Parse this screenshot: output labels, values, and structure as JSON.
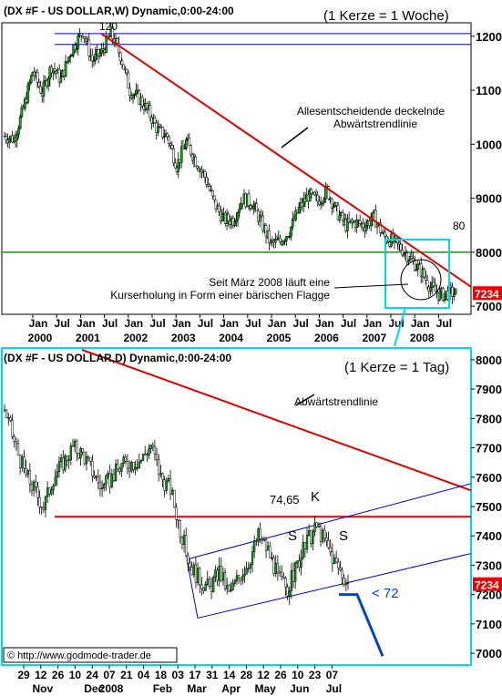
{
  "colors": {
    "candle_up": "#12a812",
    "candle_down": "#ffffff",
    "candle_outline": "#000000",
    "trendline": "#dd0000",
    "support": "#228b22",
    "channel": "#0000cc",
    "highlight_box": "#00d8e8",
    "price_tag": "#ee0000",
    "projection": "#0044cc"
  },
  "chart_data": [
    {
      "type": "candlestick",
      "title": "(DX #F - US DOLLAR,W) Dynamic,0:00-24:00",
      "subtitle": "(1 Kerze = 1 Woche)",
      "xlabel": "",
      "ylabel": "",
      "ylim": [
        6850,
        12250
      ],
      "x_tick_labels": [
        {
          "top": "Jan",
          "bottom": "2000"
        },
        {
          "top": "Jul",
          "bottom": ""
        },
        {
          "top": "Jan",
          "bottom": "2001"
        },
        {
          "top": "Jul",
          "bottom": ""
        },
        {
          "top": "Jan",
          "bottom": "2002"
        },
        {
          "top": "Jul",
          "bottom": ""
        },
        {
          "top": "Jan",
          "bottom": "2003"
        },
        {
          "top": "Jul",
          "bottom": ""
        },
        {
          "top": "Jan",
          "bottom": "2004"
        },
        {
          "top": "Jul",
          "bottom": ""
        },
        {
          "top": "Jan",
          "bottom": "2005"
        },
        {
          "top": "Jul",
          "bottom": ""
        },
        {
          "top": "Jan",
          "bottom": "2006"
        },
        {
          "top": "Jul",
          "bottom": ""
        },
        {
          "top": "Jan",
          "bottom": "2007"
        },
        {
          "top": "Jul",
          "bottom": ""
        },
        {
          "top": "Jan",
          "bottom": "2008"
        },
        {
          "top": "Jul",
          "bottom": ""
        }
      ],
      "y_tick_labels": [
        "12000",
        "11000",
        "10000",
        "9000",
        "8000",
        "7000"
      ],
      "y_ticks": [
        12000,
        11000,
        10000,
        9000,
        8000,
        7000
      ],
      "last_price_label": "7234",
      "last_price": 7234,
      "key_levels": [
        {
          "label": "120",
          "value": 12000
        },
        {
          "label": "80",
          "value": 8000
        }
      ],
      "resistance_band": [
        11850,
        12050
      ],
      "support_line": 8000,
      "downtrend_line": {
        "from": {
          "x": "Jan 2002",
          "y": 12050
        },
        "to": {
          "x": "Jul 2008",
          "y": 7300
        }
      },
      "annotations": [
        "Allesentscheidende deckelnde",
        "Abwärtstrendlinie",
        "Seit März 2008 läuft eine",
        "Kurserholung in Form einer bärischen Flagge"
      ],
      "series_anchors": [
        [
          0,
          10150
        ],
        [
          6,
          10100
        ],
        [
          12,
          10650
        ],
        [
          18,
          11350
        ],
        [
          24,
          10950
        ],
        [
          30,
          11450
        ],
        [
          36,
          11200
        ],
        [
          42,
          11700
        ],
        [
          50,
          12100
        ],
        [
          56,
          11550
        ],
        [
          62,
          11700
        ],
        [
          68,
          12050
        ],
        [
          74,
          11650
        ],
        [
          80,
          11000
        ],
        [
          86,
          10850
        ],
        [
          92,
          10600
        ],
        [
          98,
          10250
        ],
        [
          104,
          10150
        ],
        [
          110,
          9600
        ],
        [
          116,
          10050
        ],
        [
          122,
          9700
        ],
        [
          128,
          9400
        ],
        [
          134,
          8900
        ],
        [
          140,
          8600
        ],
        [
          146,
          8600
        ],
        [
          152,
          9000
        ],
        [
          158,
          8900
        ],
        [
          164,
          8550
        ],
        [
          170,
          8150
        ],
        [
          176,
          8200
        ],
        [
          182,
          8400
        ],
        [
          188,
          8800
        ],
        [
          194,
          9050
        ],
        [
          200,
          8950
        ],
        [
          206,
          9150
        ],
        [
          212,
          8750
        ],
        [
          218,
          8500
        ],
        [
          224,
          8550
        ],
        [
          230,
          8500
        ],
        [
          236,
          8650
        ],
        [
          242,
          8300
        ],
        [
          248,
          8200
        ],
        [
          254,
          8050
        ],
        [
          260,
          7850
        ],
        [
          266,
          7650
        ],
        [
          272,
          7350
        ],
        [
          278,
          7200
        ],
        [
          284,
          7250
        ],
        [
          288,
          7234
        ]
      ]
    },
    {
      "type": "candlestick",
      "title": "(DX #F - US DOLLAR,D) Dynamic,0:00-24:00",
      "subtitle": "(1 Kerze = 1 Tag)",
      "xlabel": "",
      "ylabel": "",
      "ylim": [
        6960,
        8040
      ],
      "x_tick_labels": [
        "29",
        "12",
        "26",
        "10",
        "24",
        "07",
        "21",
        "04",
        "18",
        "03",
        "17",
        "31",
        "14",
        "28",
        "12",
        "26",
        "10",
        "23",
        "07"
      ],
      "x_month_labels": [
        {
          "label": "Nov",
          "under_tick": 1
        },
        {
          "label": "Dec",
          "under_tick": 4
        },
        {
          "label": "2008",
          "under_tick": 5
        },
        {
          "label": "Feb",
          "under_tick": 8
        },
        {
          "label": "Mar",
          "under_tick": 10
        },
        {
          "label": "Apr",
          "under_tick": 12
        },
        {
          "label": "May",
          "under_tick": 14
        },
        {
          "label": "Jun",
          "under_tick": 16
        },
        {
          "label": "Jul",
          "under_tick": 18
        }
      ],
      "y_tick_labels": [
        "8000",
        "7900",
        "7800",
        "7700",
        "7600",
        "7500",
        "7400",
        "7300",
        "7200",
        "7100",
        "7000"
      ],
      "y_ticks": [
        8000,
        7900,
        7800,
        7700,
        7600,
        7500,
        7400,
        7300,
        7200,
        7100,
        7000
      ],
      "last_price_label": "7234",
      "last_price": 7234,
      "horizontal_line": 7465,
      "channel": {
        "lower": {
          "from": {
            "x": "Mar 17",
            "y": 7120
          },
          "to": {
            "x": "Jul 31",
            "y": 7340
          }
        },
        "upper": {
          "from": {
            "x": "Mar 03",
            "y": 7320
          },
          "to": {
            "x": "Jul 31",
            "y": 7575
          }
        }
      },
      "projection": [
        {
          "x": "Jul 07",
          "y": 7200
        },
        {
          "x": "Jul 07",
          "y": 7200
        },
        {
          "x": "Jul 18",
          "y": 7140
        },
        {
          "x": "Jul 31",
          "y": 6990
        }
      ],
      "annotations": [
        {
          "text": "Abwärtstrendlinie"
        },
        {
          "text": "74,65"
        },
        {
          "text": "K"
        },
        {
          "text": "S"
        },
        {
          "text": "S"
        },
        {
          "text": "< 72"
        },
        {
          "text": "© http://www.godmode-trader.de"
        }
      ],
      "series_anchors": [
        [
          0,
          7830
        ],
        [
          5,
          7720
        ],
        [
          10,
          7620
        ],
        [
          15,
          7560
        ],
        [
          20,
          7500
        ],
        [
          25,
          7600
        ],
        [
          30,
          7650
        ],
        [
          35,
          7700
        ],
        [
          40,
          7680
        ],
        [
          45,
          7620
        ],
        [
          50,
          7560
        ],
        [
          55,
          7600
        ],
        [
          60,
          7640
        ],
        [
          65,
          7650
        ],
        [
          70,
          7660
        ],
        [
          75,
          7710
        ],
        [
          80,
          7600
        ],
        [
          85,
          7560
        ],
        [
          90,
          7420
        ],
        [
          95,
          7300
        ],
        [
          100,
          7250
        ],
        [
          105,
          7220
        ],
        [
          110,
          7280
        ],
        [
          115,
          7200
        ],
        [
          120,
          7260
        ],
        [
          125,
          7310
        ],
        [
          130,
          7400
        ],
        [
          135,
          7350
        ],
        [
          140,
          7260
        ],
        [
          145,
          7220
        ],
        [
          150,
          7300
        ],
        [
          155,
          7380
        ],
        [
          160,
          7430
        ],
        [
          165,
          7370
        ],
        [
          170,
          7300
        ],
        [
          173,
          7270
        ],
        [
          176,
          7234
        ]
      ]
    }
  ]
}
